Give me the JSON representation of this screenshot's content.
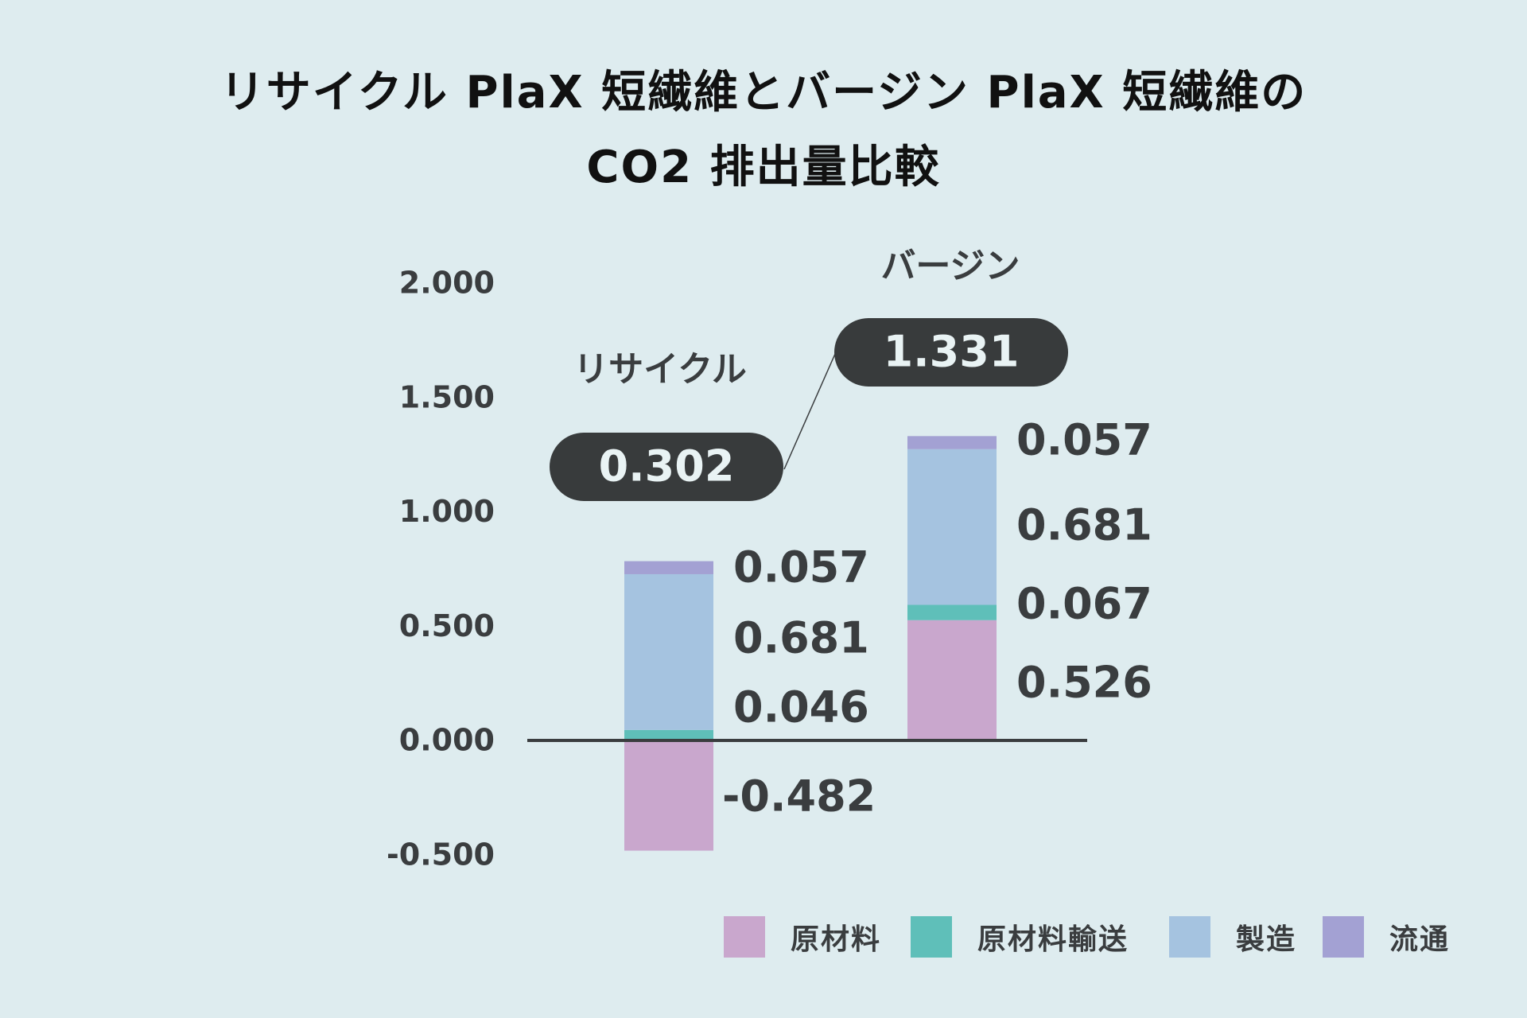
{
  "chart_data": {
    "type": "bar",
    "stacked": true,
    "title": [
      "リサイクル PlaX 短繊維とバージン PlaX 短繊維の",
      "CO2 排出量比較"
    ],
    "categories": [
      "リサイクル",
      "バージン"
    ],
    "totals": [
      "0.302",
      "1.331"
    ],
    "ylim": [
      -0.5,
      2.0
    ],
    "yticks": [
      "2.000",
      "1.500",
      "1.000",
      "0.500",
      "0.000",
      "-0.500"
    ],
    "grid": false,
    "legend_position": "bottom-right",
    "series": [
      {
        "name": "原材料",
        "color": "#c9a7cd",
        "values": [
          -0.482,
          0.526
        ],
        "labels": [
          "-0.482",
          "0.526"
        ]
      },
      {
        "name": "原材料輸送",
        "color": "#5fbfb9",
        "values": [
          0.046,
          0.067
        ],
        "labels": [
          "0.046",
          "0.067"
        ]
      },
      {
        "name": "製造",
        "color": "#a5c3e0",
        "values": [
          0.681,
          0.681
        ],
        "labels": [
          "0.681",
          "0.681"
        ]
      },
      {
        "name": "流通",
        "color": "#a3a1d3",
        "values": [
          0.057,
          0.057
        ],
        "labels": [
          "0.057",
          "0.057"
        ]
      }
    ]
  }
}
